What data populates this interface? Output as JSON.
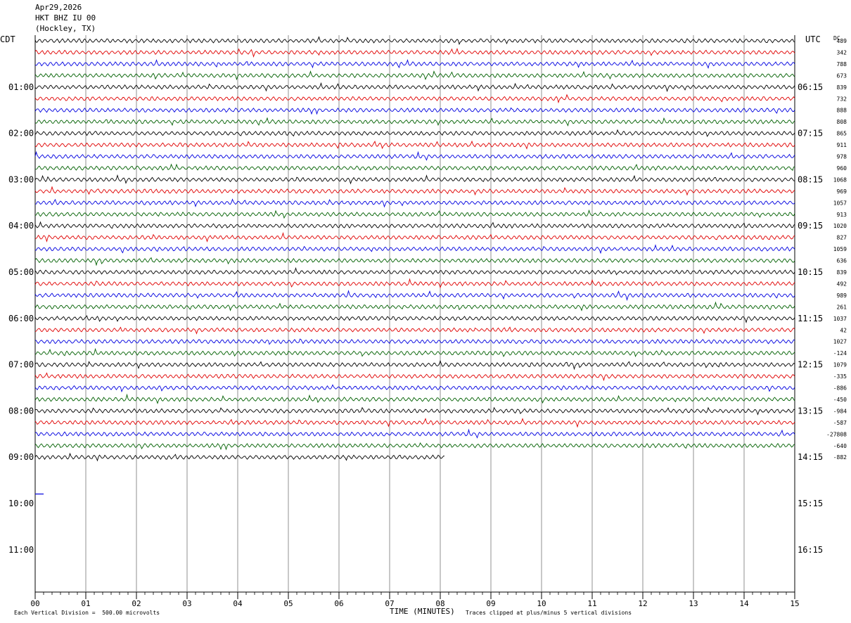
{
  "header": {
    "date": "Apr29,2026",
    "station": "HKT BHZ IU 00",
    "location": "(Hockley, TX)"
  },
  "axes": {
    "left_tz": "CDT",
    "right_tz": "UTC",
    "dc_label": "DC"
  },
  "footer": {
    "scale_text": "Each Vertical Division =  500.00 microvolts",
    "xlabel": "TIME (MINUTES)",
    "clip_text": "Traces clipped at plus/minus 5 vertical divisions"
  },
  "colors": {
    "row0": "#000000",
    "row1": "#e00000",
    "row2": "#0000e0",
    "row3": "#006000"
  },
  "chart_data": {
    "type": "line",
    "title": "",
    "x_ticks": [
      "00",
      "01",
      "02",
      "03",
      "04",
      "05",
      "06",
      "07",
      "08",
      "09",
      "10",
      "11",
      "12",
      "13",
      "14",
      "15"
    ],
    "x_range_minutes": [
      0,
      15
    ],
    "rows_per_hour": 4,
    "row_minutes": 15,
    "left_hour_labels": [
      "01:00",
      "02:00",
      "03:00",
      "04:00",
      "05:00",
      "06:00",
      "07:00",
      "08:00",
      "09:00",
      "10:00",
      "11:00"
    ],
    "right_hour_labels": [
      "06:15",
      "07:15",
      "08:15",
      "09:15",
      "10:15",
      "11:15",
      "12:15",
      "13:15",
      "14:15",
      "15:15",
      "16:15"
    ],
    "total_rows": 48,
    "full_trace_rows": 36,
    "last_trace_end_minute": 8.1,
    "empty_marker_row": 39,
    "dc_offsets": [
      "489",
      "342",
      "788",
      "673",
      "839",
      "732",
      "888",
      "808",
      "865",
      "911",
      "978",
      "960",
      "1068",
      "969",
      "1057",
      "913",
      "1020",
      "827",
      "1059",
      "636",
      "839",
      "492",
      "989",
      "261",
      "1037",
      "42",
      "1027",
      "-124",
      "1079",
      "-335",
      "-886",
      "-450",
      "-984",
      "-587",
      "-27808",
      "-640",
      "-882"
    ],
    "microvolts_per_division": 500.0,
    "clip_divisions": 5
  }
}
